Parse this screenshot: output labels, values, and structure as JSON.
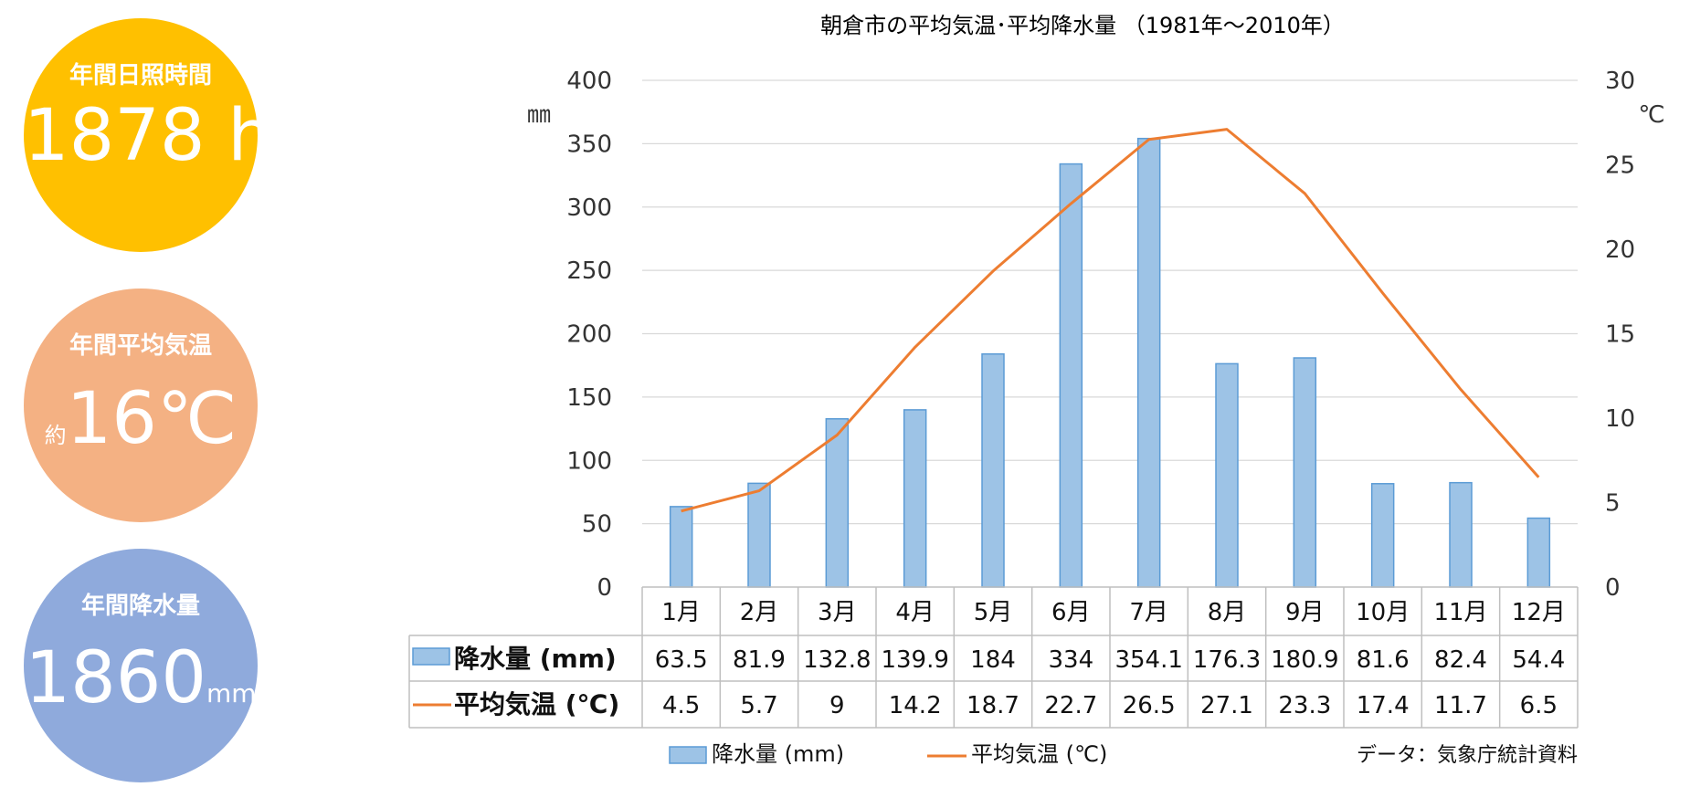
{
  "stats": {
    "sunshine": {
      "label": "年間日照時間",
      "value": "1878",
      "unit": " h",
      "color": "#FFC000"
    },
    "temperature": {
      "label": "年間平均気温",
      "prefix": "約",
      "value": "16℃",
      "color": "#F4B183"
    },
    "rainfall": {
      "label": "年間降水量",
      "value": "1860",
      "unit": "mm",
      "color": "#8FAADC"
    }
  },
  "chart_data": {
    "type": "bar+line",
    "title": "朝倉市の平均気温･平均降水量 （1981年～2010年）",
    "categories": [
      "1月",
      "2月",
      "3月",
      "4月",
      "5月",
      "6月",
      "7月",
      "8月",
      "9月",
      "10月",
      "11月",
      "12月"
    ],
    "y_left": {
      "unit": "㎜",
      "min": 0,
      "max": 400,
      "ticks": [
        "0",
        "50",
        "100",
        "150",
        "200",
        "250",
        "300",
        "350",
        "400"
      ]
    },
    "y_right": {
      "unit": "℃",
      "min": 0,
      "max": 30,
      "ticks": [
        "0",
        "5",
        "10",
        "15",
        "20",
        "25",
        "30"
      ]
    },
    "series": [
      {
        "name": "降水量",
        "table_label": "降水量 (mm)",
        "legend_label": "降水量 (mm)",
        "type": "bar",
        "axis": "left",
        "color": "#9DC3E6",
        "values": [
          63.5,
          81.9,
          132.8,
          139.9,
          184,
          334,
          354.1,
          176.3,
          180.9,
          81.6,
          82.4,
          54.4
        ]
      },
      {
        "name": "平均気温",
        "table_label": "平均気温 (℃)",
        "legend_label": "平均気温 (℃)",
        "type": "line",
        "axis": "right",
        "color": "#ED7D31",
        "values": [
          4.5,
          5.7,
          9,
          14.2,
          18.7,
          22.7,
          26.5,
          27.1,
          23.3,
          17.4,
          11.7,
          6.5
        ]
      }
    ],
    "grid": true,
    "legend": "bottom",
    "source": "データ：気象庁統計資料"
  }
}
